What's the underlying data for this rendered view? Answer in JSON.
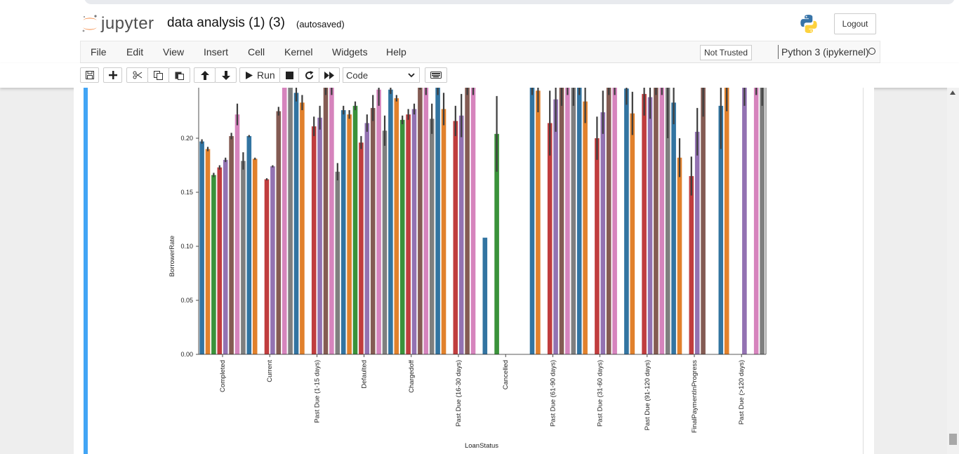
{
  "header": {
    "logo_text": "jupyter",
    "notebook_title": "data analysis (1) (3)",
    "autosave_status": "(autosaved)",
    "logout_label": "Logout"
  },
  "menubar": {
    "items": [
      "File",
      "Edit",
      "View",
      "Insert",
      "Cell",
      "Kernel",
      "Widgets",
      "Help"
    ],
    "trust_status": "Not Trusted",
    "kernel_name": "Python 3 (ipykernel)"
  },
  "toolbar": {
    "run_label": "Run",
    "cell_type": "Code"
  },
  "colors": {
    "accent_cell": "#42a5f5",
    "series": [
      "#3274a1",
      "#e1812c",
      "#3a923a",
      "#c03d3e",
      "#9372b2",
      "#845b53",
      "#d684bd",
      "#7f7f7f"
    ]
  },
  "chart_data": {
    "type": "bar",
    "xlabel": "LoanStatus",
    "ylabel": "BorrowerRate",
    "ylim": [
      0,
      0.24
    ],
    "yticks": [
      "0.00",
      "0.05",
      "0.10",
      "0.15",
      "0.20"
    ],
    "categories": [
      "Completed",
      "Current",
      "Past Due (1-15 days)",
      "Defaulted",
      "Chargedoff",
      "Past Due (16-30 days)",
      "Cancelled",
      "Past Due (61-90 days)",
      "Past Due (31-60 days)",
      "Past Due (91-120 days)",
      "FinalPaymentInProgress",
      "Past Due (>120 days)"
    ],
    "series": [
      {
        "values": [
          0.197,
          0.202,
          0.242,
          0.226,
          0.245,
          0.26,
          0.108,
          0.26,
          0.26,
          0.246,
          0.233,
          0.23
        ],
        "errors": [
          0.002,
          0.001,
          0.008,
          0.004,
          0.004,
          0.02,
          0,
          0.02,
          0.02,
          0.015,
          0.02,
          0.04
        ]
      },
      {
        "values": [
          0.19,
          0.181,
          0.233,
          0.222,
          0.237,
          0.227,
          null,
          0.244,
          0.234,
          0.223,
          0.182,
          0.25
        ],
        "errors": [
          0.002,
          0.001,
          0.007,
          0.004,
          0.003,
          0.015,
          null,
          0.02,
          0.02,
          0.02,
          0.018,
          0.025
        ]
      },
      {
        "values": [
          0.166,
          null,
          null,
          0.23,
          0.217,
          null,
          0.204,
          null,
          null,
          null,
          null,
          null
        ],
        "errors": [
          0.002,
          null,
          null,
          0.004,
          0.004,
          null,
          0.035,
          null,
          null,
          null,
          null,
          null
        ]
      },
      {
        "values": [
          0.173,
          0.162,
          0.211,
          0.196,
          0.222,
          0.216,
          null,
          0.214,
          0.2,
          0.241,
          0.165,
          null
        ],
        "errors": [
          0.002,
          0.001,
          0.009,
          0.006,
          0.005,
          0.014,
          null,
          0.03,
          0.02,
          0.02,
          0.018,
          null
        ]
      },
      {
        "values": [
          0.18,
          0.174,
          0.219,
          0.214,
          0.227,
          0.221,
          null,
          0.236,
          0.224,
          0.238,
          0.206,
          0.26
        ],
        "errors": [
          0.002,
          0.001,
          0.011,
          0.008,
          0.005,
          0.02,
          null,
          0.03,
          0.02,
          0.02,
          0.022,
          0.03
        ]
      },
      {
        "values": [
          0.202,
          0.225,
          0.26,
          0.228,
          0.26,
          0.26,
          null,
          0.26,
          0.26,
          0.26,
          0.26,
          null
        ],
        "errors": [
          0.003,
          0.004,
          0.02,
          0.012,
          0.015,
          0.02,
          null,
          0.03,
          0.02,
          0.02,
          0.04,
          null
        ]
      },
      {
        "values": [
          0.222,
          0.26,
          0.26,
          0.245,
          0.26,
          0.26,
          null,
          0.26,
          0.26,
          0.26,
          null,
          0.26
        ],
        "errors": [
          0.01,
          0.01,
          0.02,
          0.015,
          0.02,
          0.02,
          null,
          0.02,
          0.02,
          0.02,
          null,
          0.02
        ]
      },
      {
        "values": [
          0.179,
          0.26,
          0.169,
          0.207,
          0.218,
          null,
          null,
          0.26,
          null,
          0.26,
          null,
          0.26
        ],
        "errors": [
          0.008,
          0.01,
          0.008,
          0.014,
          0.014,
          null,
          null,
          0.03,
          null,
          0.06,
          null,
          0.03
        ]
      }
    ]
  }
}
